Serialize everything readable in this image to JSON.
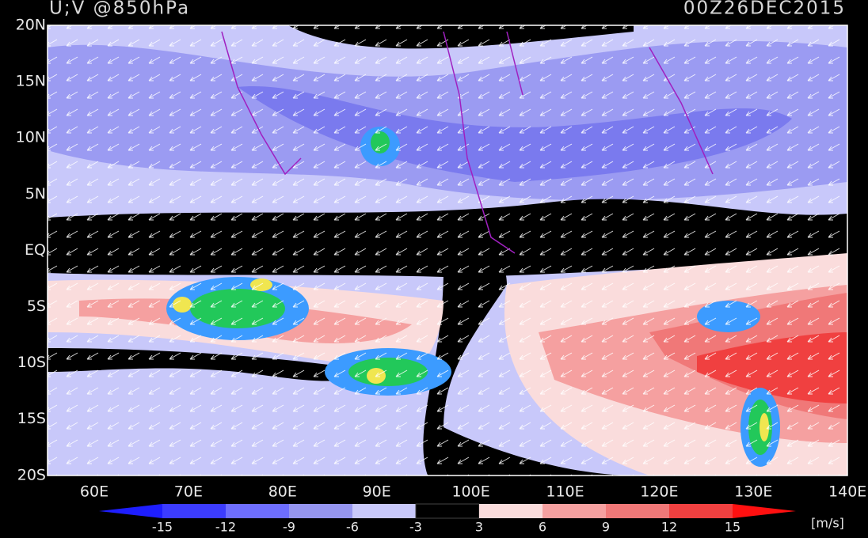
{
  "header": {
    "title": "U;V @850hPa",
    "time": "00Z26DEC2015"
  },
  "lat_labels": [
    "20N",
    "15N",
    "10N",
    "5N",
    "EQ",
    "5S",
    "10S",
    "15S",
    "20S"
  ],
  "lon_labels": [
    "60E",
    "70E",
    "80E",
    "90E",
    "100E",
    "110E",
    "120E",
    "130E",
    "140E"
  ],
  "colorbar": {
    "labels": [
      "-15",
      "-12",
      "-9",
      "-6",
      "-3",
      "3",
      "6",
      "9",
      "12",
      "15"
    ],
    "unit": "[m/s]"
  }
}
